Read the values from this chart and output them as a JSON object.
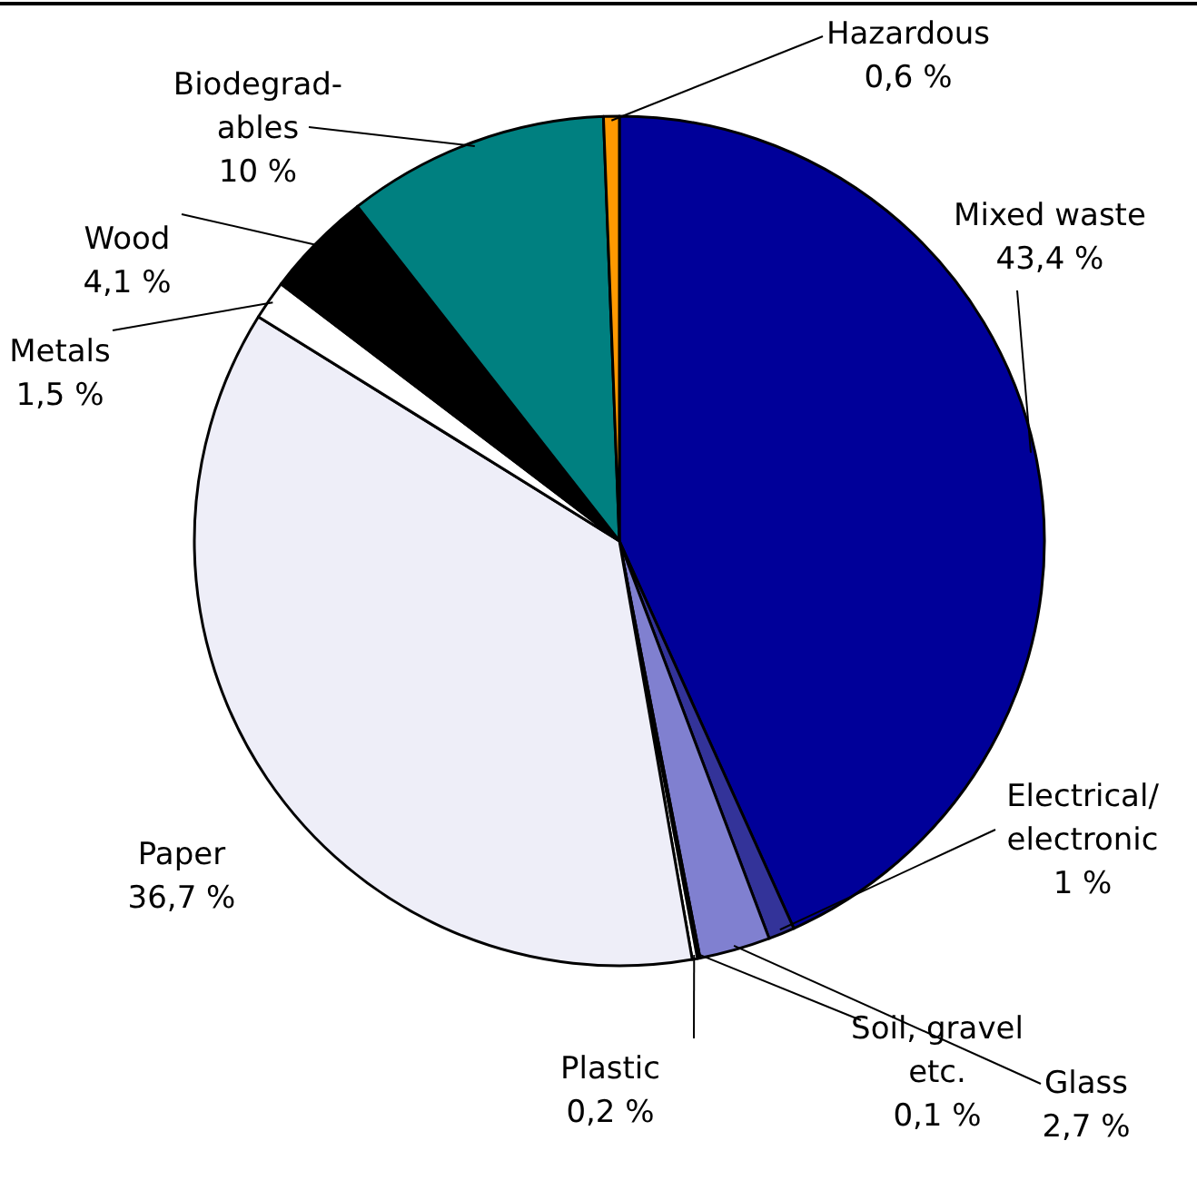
{
  "chart_data": {
    "type": "pie",
    "categories": [
      "Mixed waste",
      "Electrical/\nelectronic",
      "Glass",
      "Soil, gravel\netc.",
      "Plastic",
      "Paper",
      "Metals",
      "Wood",
      "Biodegrad-\nables",
      "Hazardous"
    ],
    "values": [
      43.4,
      1,
      2.7,
      0.1,
      0.2,
      36.7,
      1.5,
      4.1,
      10,
      0.6
    ],
    "value_labels": [
      "43,4 %",
      "1 %",
      "2,7 %",
      "0,1 %",
      "0,2 %",
      "36,7 %",
      "1,5 %",
      "4,1 %",
      "10 %",
      "0,6 %"
    ],
    "colors": [
      "#000099",
      "#333399",
      "#8080d0",
      "#ffffff",
      "#ffffff",
      "#eeeef8",
      "#ffffff",
      "#000000",
      "#008080",
      "#ff9900"
    ]
  }
}
